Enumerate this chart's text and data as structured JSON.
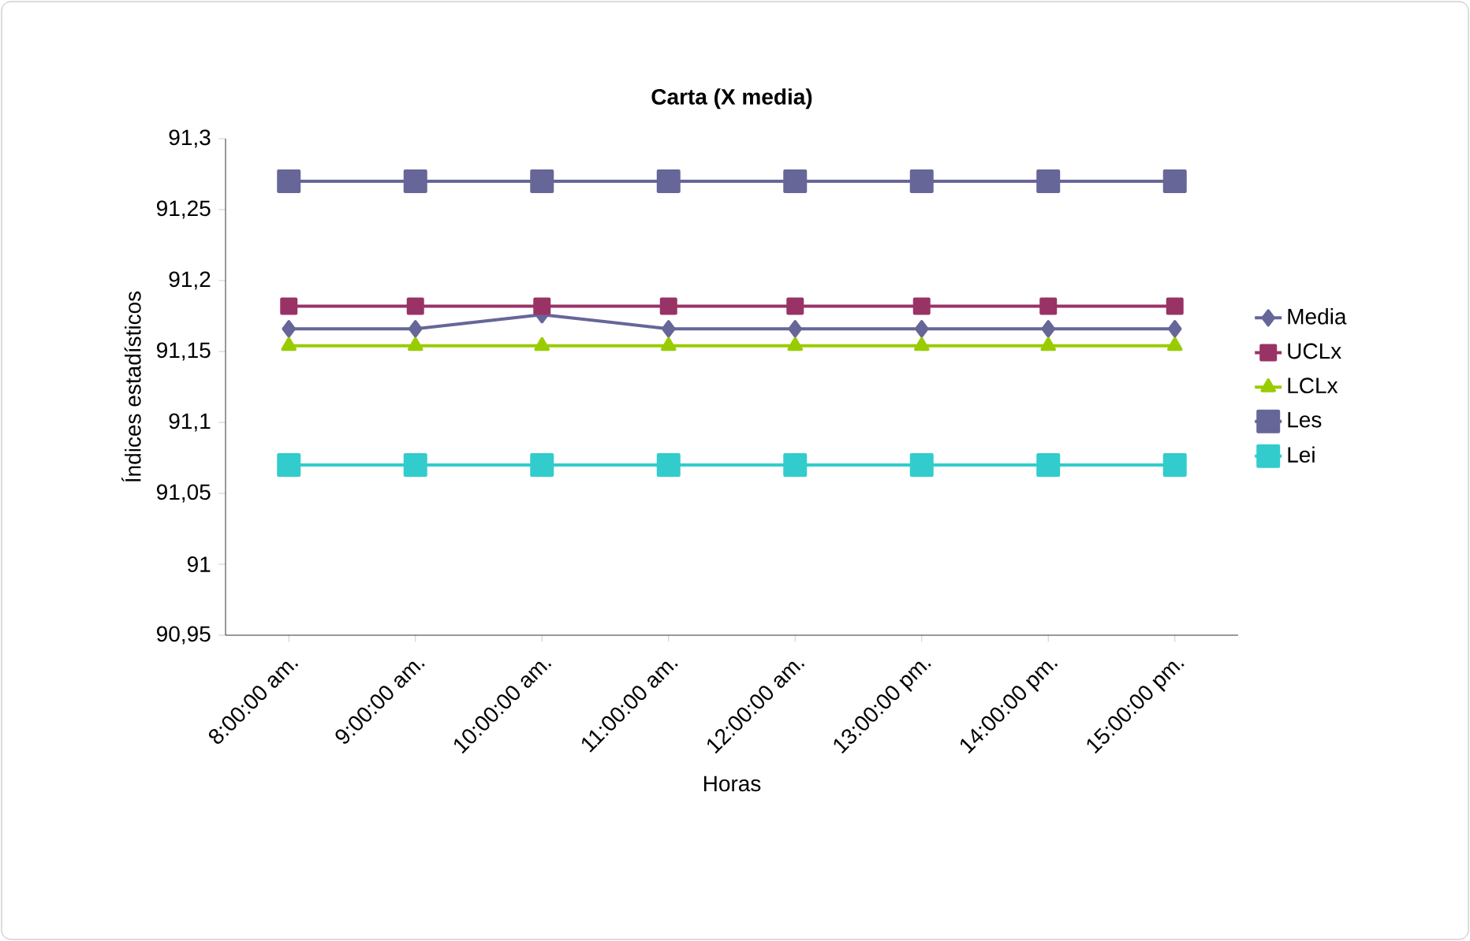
{
  "chart_data": {
    "type": "line",
    "title": "Carta (X media)",
    "xlabel": "Horas",
    "ylabel": "Índices estadísticos",
    "categories": [
      "8:00:00 am.",
      "9:00:00 am.",
      "10:00:00 am.",
      "11:00:00 am.",
      "12:00:00 am.",
      "13:00:00 pm.",
      "14:00:00 pm.",
      "15:00:00 pm."
    ],
    "series": [
      {
        "name": "Media",
        "color": "#666699",
        "marker": "diamond",
        "values": [
          91.166,
          91.166,
          91.176,
          91.166,
          91.166,
          91.166,
          91.166,
          91.166
        ]
      },
      {
        "name": "UCLx",
        "color": "#993366",
        "marker": "square",
        "values": [
          91.182,
          91.182,
          91.182,
          91.182,
          91.182,
          91.182,
          91.182,
          91.182
        ]
      },
      {
        "name": "LCLx",
        "color": "#99cc00",
        "marker": "triangle",
        "values": [
          91.154,
          91.154,
          91.154,
          91.154,
          91.154,
          91.154,
          91.154,
          91.154
        ]
      },
      {
        "name": "Les",
        "color": "#666699",
        "marker": "square",
        "values": [
          91.27,
          91.27,
          91.27,
          91.27,
          91.27,
          91.27,
          91.27,
          91.27
        ]
      },
      {
        "name": "Lei",
        "color": "#33cccc",
        "marker": "square",
        "values": [
          91.07,
          91.07,
          91.07,
          91.07,
          91.07,
          91.07,
          91.07,
          91.07
        ]
      }
    ],
    "ylim": [
      90.95,
      91.3
    ],
    "yticks": [
      {
        "value": 90.95,
        "label": "90,95"
      },
      {
        "value": 91,
        "label": "91"
      },
      {
        "value": 91.05,
        "label": "91,05"
      },
      {
        "value": 91.1,
        "label": "91,1"
      },
      {
        "value": 91.15,
        "label": "91,15"
      },
      {
        "value": 91.2,
        "label": "91,2"
      },
      {
        "value": 91.25,
        "label": "91,25"
      },
      {
        "value": 91.3,
        "label": "91,3"
      }
    ],
    "grid": false,
    "legend": "right"
  }
}
